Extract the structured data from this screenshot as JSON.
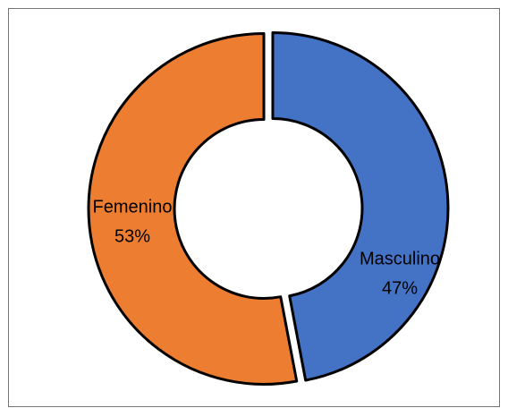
{
  "chart_data": {
    "type": "donut",
    "categories": [
      "Masculino",
      "Femenino"
    ],
    "values": [
      47,
      53
    ],
    "value_labels": [
      "47%",
      "53%"
    ],
    "colors": [
      "#4472c4",
      "#ed7d31"
    ]
  }
}
